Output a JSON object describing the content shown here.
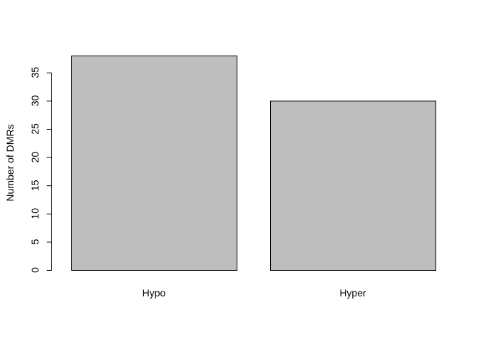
{
  "chart_data": {
    "type": "bar",
    "title": "",
    "xlabel": "",
    "ylabel": "Number of DMRs",
    "categories": [
      "Hypo",
      "Hyper"
    ],
    "values": [
      38,
      30
    ],
    "ylim": [
      0,
      38
    ],
    "yticks": [
      0,
      5,
      10,
      15,
      20,
      25,
      30,
      35
    ],
    "ytick_labels": [
      "0",
      "5",
      "10",
      "15",
      "20",
      "25",
      "30",
      "35"
    ],
    "bar_fill": "#bebebe",
    "bar_stroke": "#000000",
    "grid": false,
    "legend": "none"
  }
}
